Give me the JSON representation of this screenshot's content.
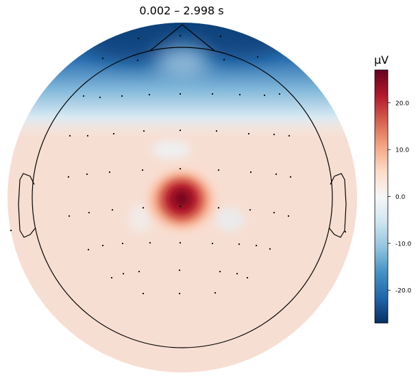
{
  "chart_data": {
    "type": "heatmap",
    "title": "0.002 – 2.998 s",
    "colorbar": {
      "unit": "µV",
      "ticks": [
        20.0,
        10.0,
        0.0,
        -10.0,
        -20.0
      ],
      "tick_labels": [
        "20.0",
        "10.0",
        "0.0",
        "-10.0",
        "-20.0"
      ],
      "vmin": -27,
      "vmax": 27,
      "colormap": "RdBu_r",
      "stops": [
        "#053061",
        "#2166ac",
        "#4393c3",
        "#92c5de",
        "#d1e5f0",
        "#f7f7f7",
        "#fddbc7",
        "#f4a582",
        "#d6604d",
        "#b2182b",
        "#67001f"
      ]
    },
    "topomap": {
      "baseline_uv": 4,
      "frontal_negative_uv": -27,
      "central_peak_uv": 27,
      "description_of_pattern": ""
    }
  }
}
